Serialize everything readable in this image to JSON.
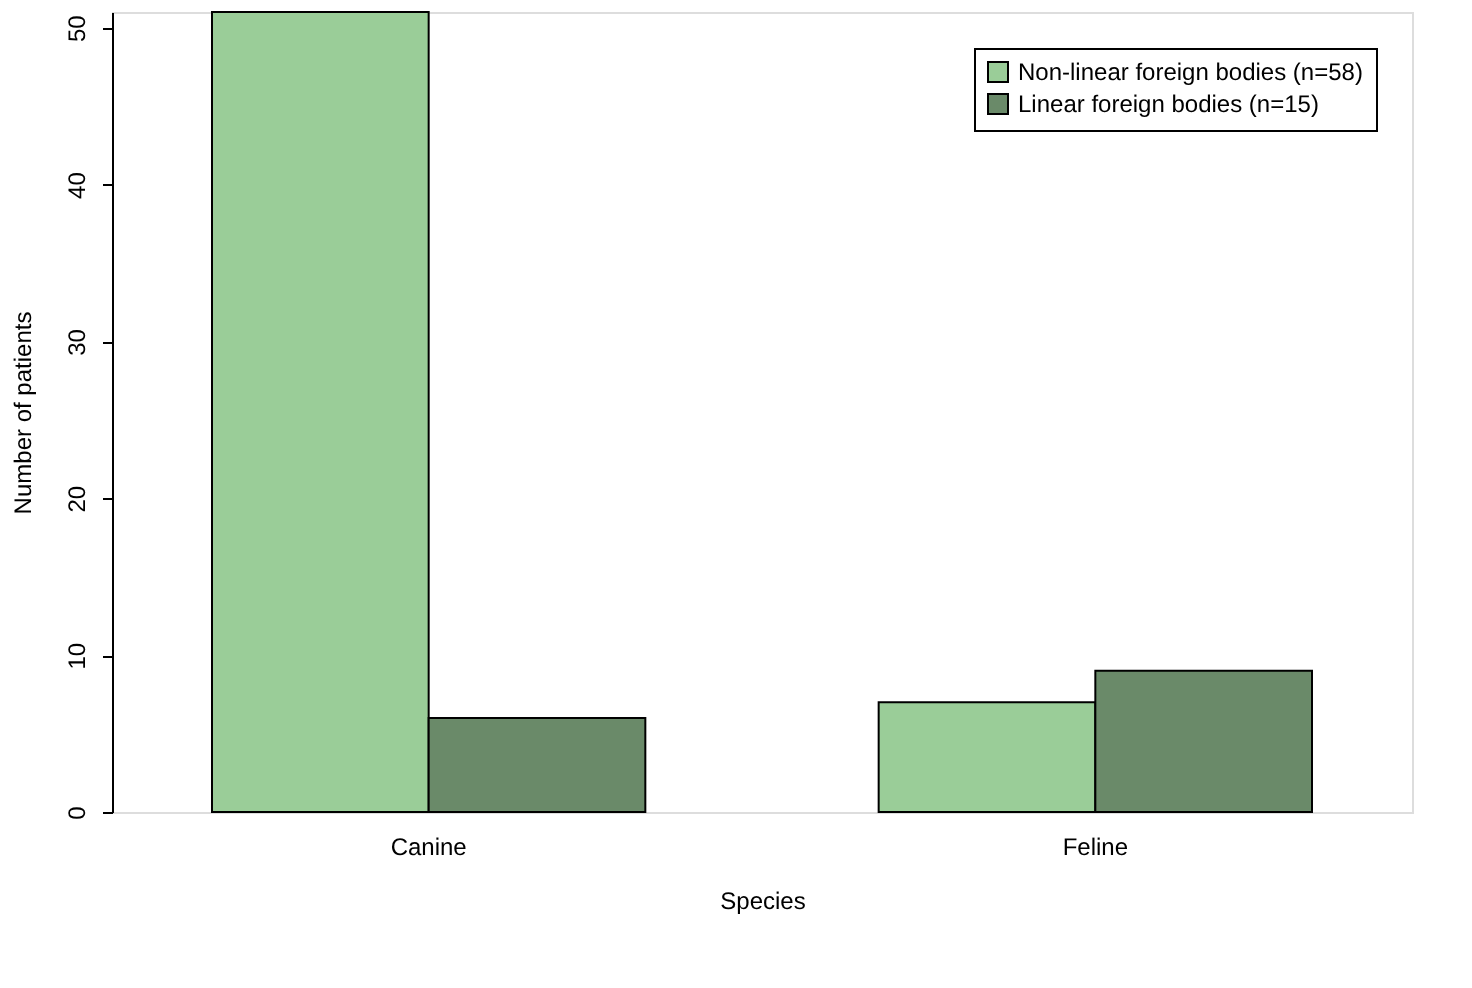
{
  "chart_data": {
    "type": "bar",
    "xlabel": "Species",
    "ylabel": "Number of patients",
    "categories": [
      "Canine",
      "Feline"
    ],
    "series": [
      {
        "name": "Non-linear foreign bodies (n=58)",
        "color": "#9acd98",
        "values": [
          51,
          7
        ]
      },
      {
        "name": "Linear foreign bodies (n=15)",
        "color": "#6a8a69",
        "values": [
          6,
          9
        ]
      }
    ],
    "ylim": [
      0,
      51
    ],
    "yticks": [
      0,
      10,
      20,
      30,
      40,
      50
    ],
    "grid": false,
    "legend": "top right"
  }
}
